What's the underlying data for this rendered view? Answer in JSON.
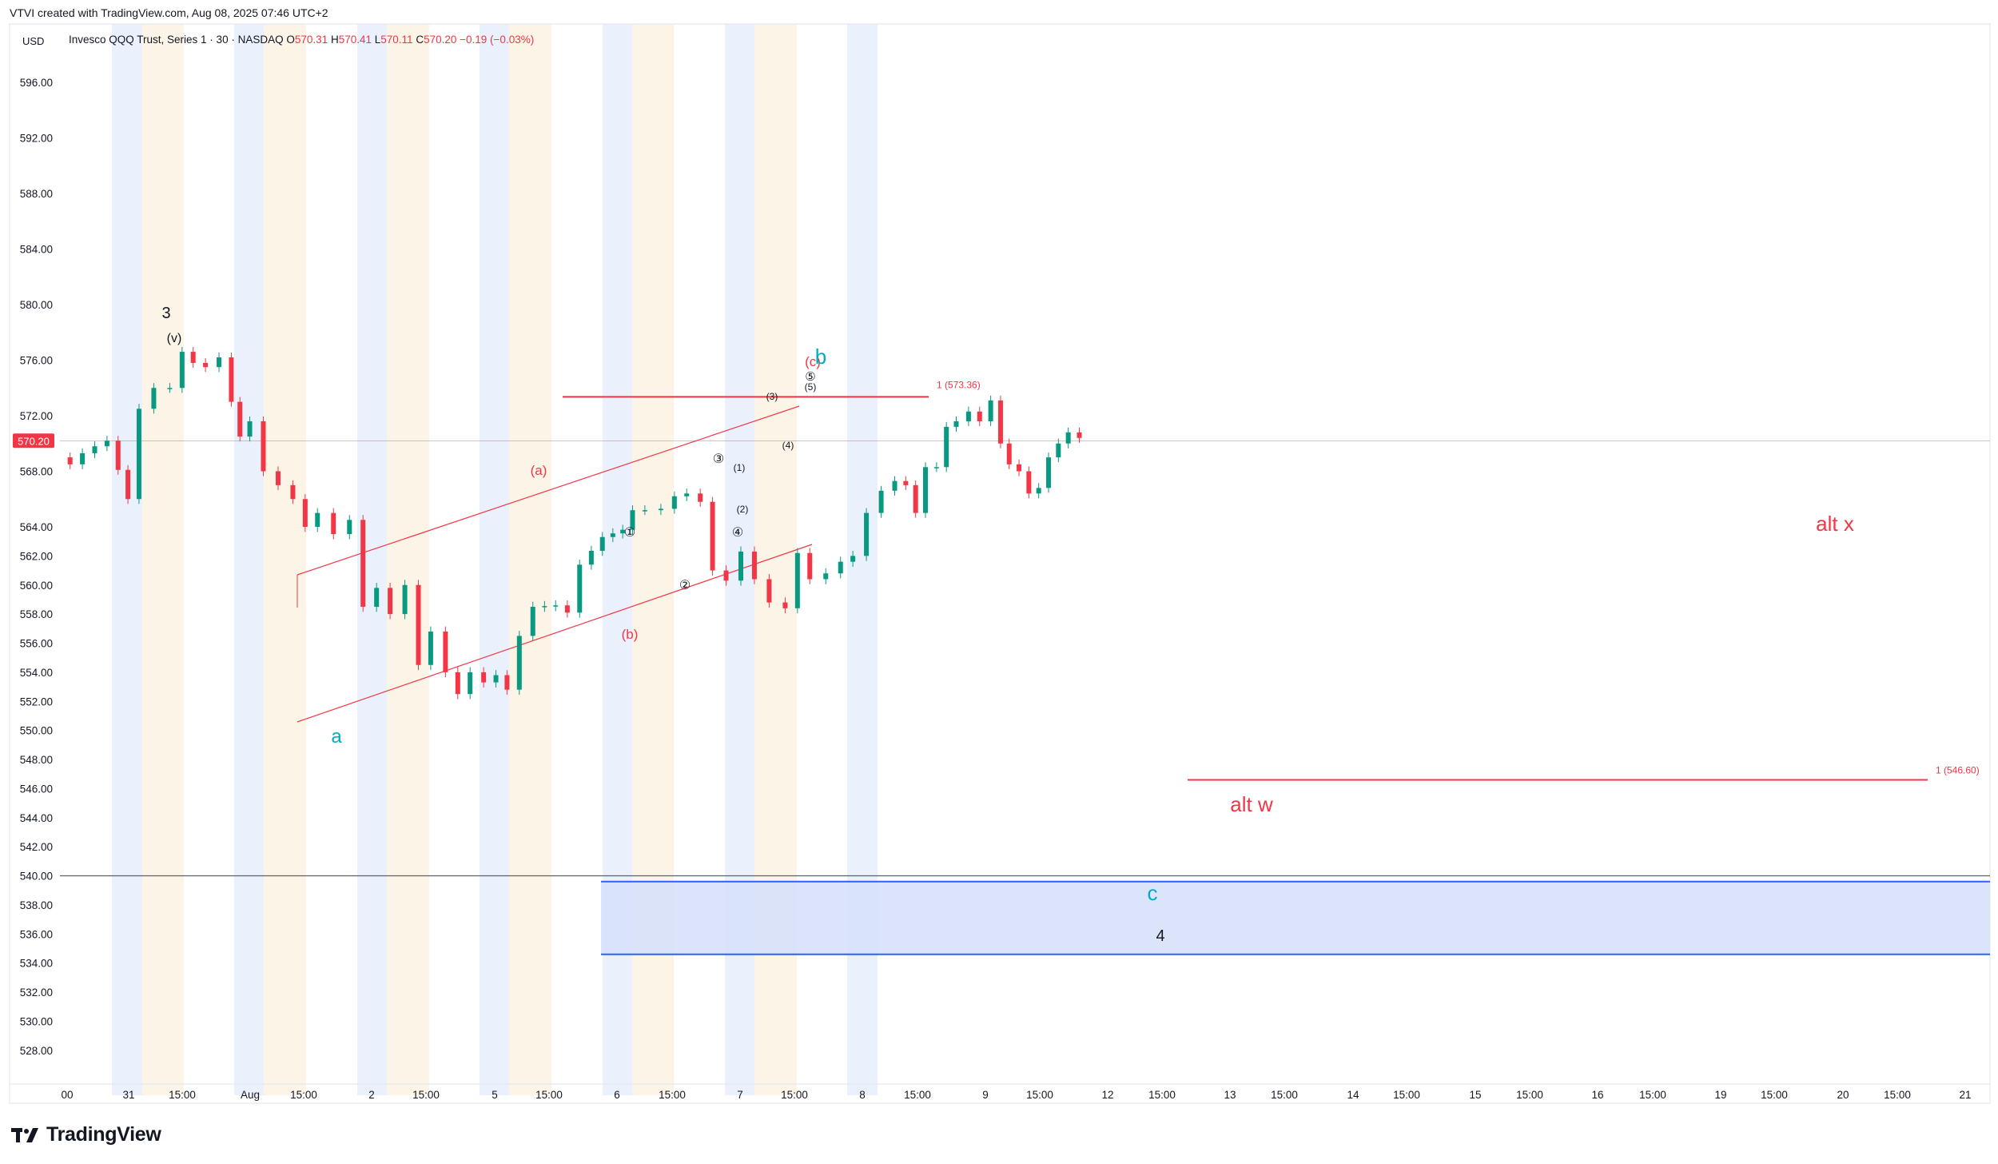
{
  "header": {
    "title": "VTVI created with TradingView.com, Aug 08, 2025 07:46 UTC+2",
    "currency": "USD"
  },
  "legend": {
    "symbol": "Invesco QQQ Trust, Series 1 · 30 · NASDAQ",
    "o_label": "O",
    "o_value": "570.31",
    "h_label": "H",
    "h_value": "570.41",
    "l_label": "L",
    "l_value": "570.11",
    "c_label": "C",
    "c_value": "570.20",
    "change": "−0.19 (−0.03%)"
  },
  "brand": {
    "name": "TradingView"
  },
  "colors": {
    "up": "#089981",
    "down": "#f23645",
    "accent_blue": "#2962ff",
    "label_teal": "#00acc1",
    "label_red": "#f23645",
    "premarket": "#e8edfd",
    "afterhours": "#fdf2e4",
    "box_fill": "#d7e1fb"
  },
  "chart_data": {
    "type": "candlestick",
    "symbol": "QQQ",
    "timeframe": "30",
    "ylim": [
      526,
      598
    ],
    "y_ticks": [
      "596.00",
      "592.00",
      "588.00",
      "584.00",
      "580.00",
      "576.00",
      "572.00",
      "568.00",
      "564.00",
      "562.00",
      "560.00",
      "558.00",
      "556.00",
      "554.00",
      "552.00",
      "550.00",
      "548.00",
      "546.00",
      "544.00",
      "542.00",
      "540.00",
      "538.00",
      "536.00",
      "534.00",
      "532.00",
      "530.00",
      "528.00"
    ],
    "x_ticks": [
      "00",
      "31",
      "15:00",
      "Aug",
      "15:00",
      "2",
      "15:00",
      "5",
      "15:00",
      "6",
      "15:00",
      "7",
      "15:00",
      "8",
      "15:00",
      "9",
      "15:00",
      "12",
      "15:00",
      "13",
      "15:00",
      "14",
      "15:00",
      "15",
      "15:00",
      "16",
      "15:00",
      "19",
      "15:00",
      "20",
      "15:00",
      "21"
    ],
    "last_price": "570.20",
    "price_path": [
      [
        0,
        569
      ],
      [
        0.5,
        568.5
      ],
      [
        1,
        569.3
      ],
      [
        1.5,
        569.8
      ],
      [
        2,
        570.2
      ],
      [
        2.8,
        566
      ],
      [
        3.3,
        572.5
      ],
      [
        4,
        574
      ],
      [
        4.6,
        574
      ],
      [
        5,
        576.6
      ],
      [
        5.5,
        575.8
      ],
      [
        6,
        575.5
      ],
      [
        6.6,
        576.2
      ],
      [
        7,
        573
      ],
      [
        7.3,
        570.5
      ],
      [
        7.8,
        571.6
      ],
      [
        8.4,
        568
      ],
      [
        9,
        567
      ],
      [
        9.6,
        566
      ],
      [
        10,
        564
      ],
      [
        10.6,
        565
      ],
      [
        11.3,
        563.5
      ],
      [
        11.9,
        564.5
      ],
      [
        12.4,
        558.5
      ],
      [
        13,
        559.8
      ],
      [
        13.5,
        558
      ],
      [
        14.2,
        560
      ],
      [
        14.6,
        554.5
      ],
      [
        15.2,
        556.8
      ],
      [
        15.8,
        554
      ],
      [
        16.2,
        552.5
      ],
      [
        16.8,
        554
      ],
      [
        17.3,
        553.3
      ],
      [
        17.8,
        553.8
      ],
      [
        18.2,
        552.8
      ],
      [
        18.8,
        556.5
      ],
      [
        19.3,
        558.5
      ],
      [
        20.2,
        558.6
      ],
      [
        20.7,
        558.1
      ],
      [
        21.2,
        561.4
      ],
      [
        22.1,
        563.3
      ],
      [
        22.9,
        563.8
      ],
      [
        23.3,
        565.2
      ],
      [
        23.9,
        565.2
      ],
      [
        24.6,
        565.3
      ],
      [
        25,
        566.2
      ],
      [
        25.6,
        566.4
      ],
      [
        26.1,
        565.8
      ],
      [
        26.6,
        561
      ],
      [
        27.2,
        560.3
      ],
      [
        27.8,
        562.3
      ],
      [
        28.3,
        560.4
      ],
      [
        29,
        558.8
      ],
      [
        29.6,
        558.4
      ],
      [
        30,
        562.2
      ],
      [
        30.6,
        560.4
      ],
      [
        31.3,
        560.8
      ],
      [
        31.8,
        561.6
      ],
      [
        32.3,
        562
      ],
      [
        32.9,
        565
      ],
      [
        33.5,
        566.6
      ],
      [
        34,
        567.3
      ],
      [
        34.4,
        567
      ],
      [
        34.8,
        565
      ],
      [
        35.2,
        568.3
      ],
      [
        35.7,
        568.3
      ],
      [
        36,
        571.2
      ],
      [
        36.5,
        571.6
      ],
      [
        37,
        572.3
      ],
      [
        37.4,
        571.6
      ],
      [
        37.9,
        573.1
      ],
      [
        38.2,
        570
      ],
      [
        38.6,
        568.5
      ],
      [
        39,
        568
      ],
      [
        39.4,
        566.4
      ],
      [
        39.8,
        566.8
      ],
      [
        40.2,
        569
      ],
      [
        40.6,
        570
      ],
      [
        41,
        570.8
      ],
      [
        41.5,
        570.4
      ]
    ],
    "annotations": {
      "wave_3": "3",
      "wave_v": "(v)",
      "wave_a": "a",
      "wave_b": "b",
      "wave_c": "c",
      "wave_4": "4",
      "paren_a": "(a)",
      "paren_b": "(b)",
      "paren_c": "(c)",
      "c1": "①",
      "c2": "②",
      "c3": "③",
      "c4": "④",
      "c5": "⑤",
      "p1": "(1)",
      "p2": "(2)",
      "p3": "(3)",
      "p4": "(4)",
      "p5": "(5)",
      "alt_w": "alt w",
      "alt_x": "alt x",
      "fib_top": "1 (573.36)",
      "fib_low": "1 (546.60)"
    },
    "levels": {
      "fib_top": 573.36,
      "fib_low": 546.6,
      "support": 540.0,
      "box_top": 539.6,
      "box_bottom": 534.6
    }
  }
}
